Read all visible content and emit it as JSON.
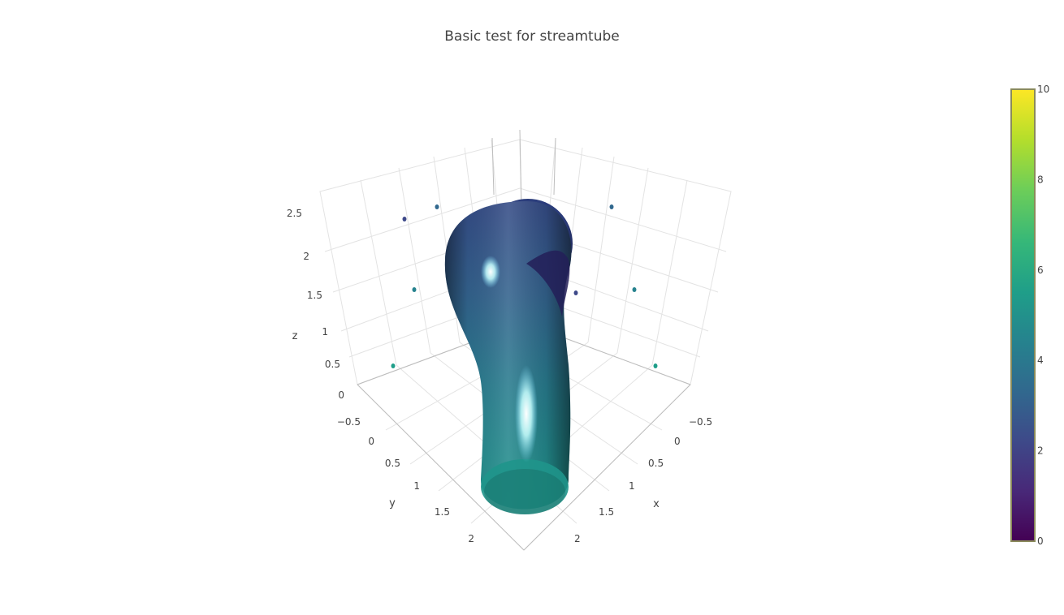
{
  "chart_data": {
    "type": "streamtube",
    "title": "Basic test for streamtube",
    "scene": {
      "x": {
        "label": "x",
        "ticks": [
          "−0.5",
          "0",
          "0.5",
          "1",
          "1.5",
          "2"
        ]
      },
      "y": {
        "label": "y",
        "ticks": [
          "−0.5",
          "0",
          "0.5",
          "1",
          "1.5",
          "2"
        ]
      },
      "z": {
        "label": "z",
        "ticks": [
          "0",
          "0.5",
          "1",
          "1.5",
          "2",
          "2.5"
        ]
      }
    },
    "colorbar": {
      "colorscale": "Viridis",
      "range": [
        0,
        10
      ],
      "ticks": [
        "0",
        "2",
        "4",
        "6",
        "8",
        "10"
      ]
    },
    "tube_color_range": [
      2,
      5.5
    ],
    "markers_color_values": [
      3,
      2,
      4,
      5.5,
      3,
      2,
      4,
      5.5
    ]
  },
  "colors": {
    "viridis": [
      "#440154",
      "#482878",
      "#3e4989",
      "#31688e",
      "#26828e",
      "#1f9e89",
      "#35b779",
      "#6ece58",
      "#b5de2b",
      "#fde725"
    ]
  }
}
